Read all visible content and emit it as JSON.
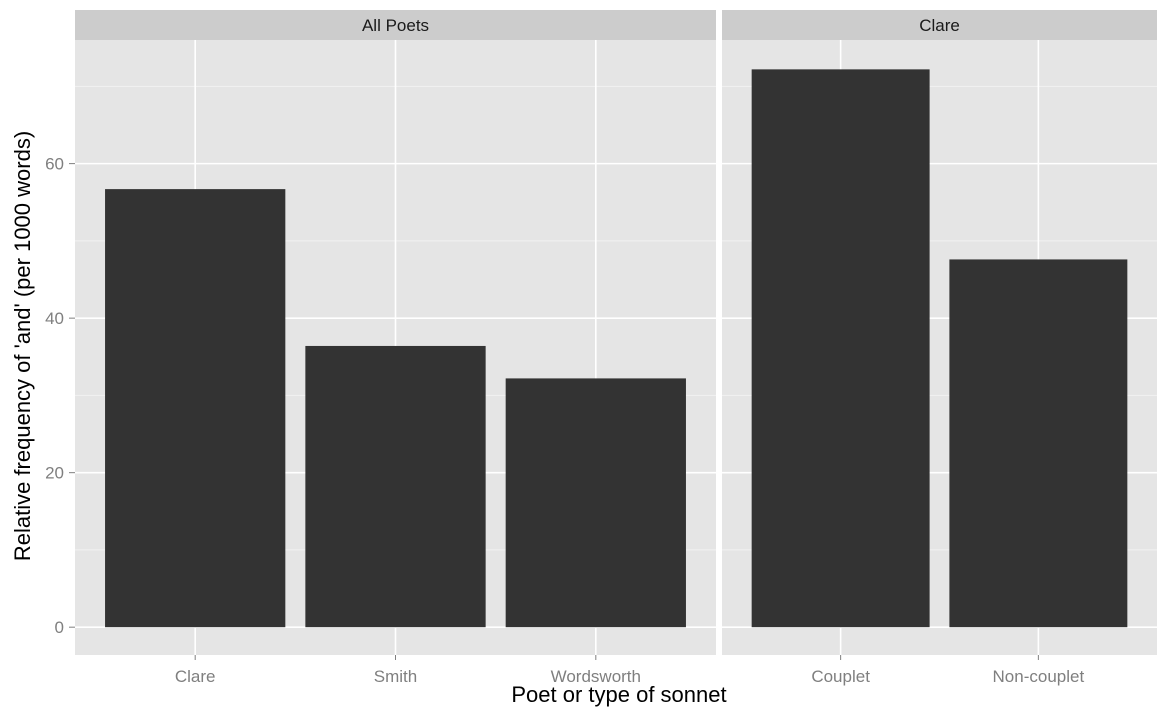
{
  "chart_data": {
    "type": "bar",
    "facets": [
      {
        "strip_label": "All Poets",
        "categories": [
          "Clare",
          "Smith",
          "Wordsworth"
        ],
        "values": [
          56.7,
          36.4,
          32.2
        ]
      },
      {
        "strip_label": "Clare",
        "categories": [
          "Couplet",
          "Non-couplet"
        ],
        "values": [
          72.2,
          47.6
        ]
      }
    ],
    "xlabel": "Poet or type of sonnet",
    "ylabel": "Relative frequency of 'and' (per 1000 words)",
    "ylim": [
      -3.6,
      76
    ],
    "yticks": [
      "0",
      "20",
      "40",
      "60"
    ],
    "grid": true,
    "colors": {
      "bar": "#333333",
      "panel_background": "#e5e5e5",
      "strip_background": "#cccccc",
      "grid_major": "#ffffff",
      "grid_minor": "#f2f2f2"
    }
  }
}
